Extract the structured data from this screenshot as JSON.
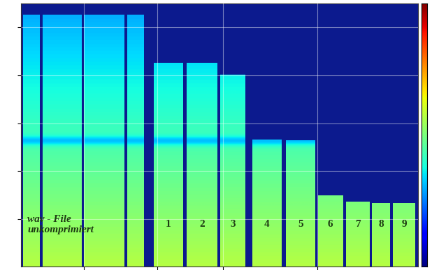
{
  "chart_data": {
    "type": "spectrogram",
    "xlim": [
      0,
      57
    ],
    "ylim": [
      0,
      22
    ],
    "xticks": [
      9,
      19.5,
      29,
      42.5
    ],
    "yticks": [
      4,
      8,
      12,
      16,
      20
    ],
    "grid": true,
    "tick_labels": false,
    "groups": [
      {
        "label": "wav - File\nunkomprimiert",
        "segments": [
          {
            "start": 0.3,
            "end": 2.7,
            "cutoff": 21
          },
          {
            "start": 3.1,
            "end": 8.7,
            "cutoff": 21
          },
          {
            "start": 9.0,
            "end": 14.8,
            "cutoff": 21
          },
          {
            "start": 15.2,
            "end": 17.6,
            "cutoff": 21
          }
        ]
      },
      {
        "label": "1",
        "segments": [
          {
            "start": 19.0,
            "end": 23.2,
            "cutoff": 17
          }
        ]
      },
      {
        "label": "2",
        "segments": [
          {
            "start": 23.8,
            "end": 28.2,
            "cutoff": 17
          }
        ]
      },
      {
        "label": "3",
        "segments": [
          {
            "start": 28.6,
            "end": 32.2,
            "cutoff": 16
          }
        ]
      },
      {
        "label": "4",
        "segments": [
          {
            "start": 33.2,
            "end": 37.4,
            "cutoff": 10.6
          }
        ]
      },
      {
        "label": "5",
        "segments": [
          {
            "start": 38.0,
            "end": 42.2,
            "cutoff": 10.5
          }
        ]
      },
      {
        "label": "6",
        "segments": [
          {
            "start": 42.6,
            "end": 46.2,
            "cutoff": 5.9
          }
        ]
      },
      {
        "label": "7",
        "segments": [
          {
            "start": 46.6,
            "end": 50.0,
            "cutoff": 5.4
          }
        ]
      },
      {
        "label": "8",
        "segments": [
          {
            "start": 50.4,
            "end": 53.0,
            "cutoff": 5.3
          }
        ]
      },
      {
        "label": "9",
        "segments": [
          {
            "start": 53.4,
            "end": 56.6,
            "cutoff": 5.3
          }
        ]
      }
    ]
  }
}
